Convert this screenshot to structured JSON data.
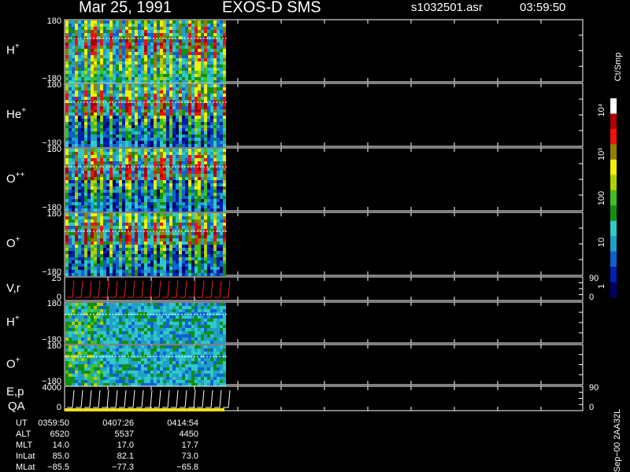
{
  "header": {
    "date": "Mar 25, 1991",
    "instrument": "EXOS-D SMS",
    "file": "s1032501.asr",
    "time": "03:59:50"
  },
  "panels": [
    {
      "label": "H",
      "sup": "+",
      "top": "180",
      "bottom": "−180"
    },
    {
      "label": "He",
      "sup": "+",
      "top": "180",
      "bottom": "−180"
    },
    {
      "label": "O",
      "sup": "++",
      "top": "180",
      "bottom": "−180"
    },
    {
      "label": "O",
      "sup": "+",
      "top": "180",
      "bottom": "−180"
    },
    {
      "label": "V,r",
      "top": "25",
      "bottom": "0",
      "right_top": "90",
      "right_bottom": "0"
    },
    {
      "label": "H",
      "sup": "+",
      "top": "180",
      "bottom": "−180"
    },
    {
      "label": "O",
      "sup": "+",
      "top": "180",
      "bottom": "−180"
    },
    {
      "label": "E,p",
      "top": "4000",
      "bottom": "0",
      "right_top": "90",
      "right_bottom": "0"
    }
  ],
  "qa_label": "QA",
  "colorbar": {
    "unit": "Ct/Smp",
    "ticks": [
      "10⁴",
      "10³",
      "100",
      "10",
      "1"
    ]
  },
  "footer": [
    [
      "UT",
      "0359:50",
      "0407:26",
      "0414:54"
    ],
    [
      "ALT",
      "6520",
      "5537",
      "4450"
    ],
    [
      "MLT",
      "14.0",
      "17.0",
      "17.7"
    ],
    [
      "InLat",
      "85.0",
      "82.1",
      "73.0"
    ],
    [
      "MLat",
      "−85.5",
      "−77.3",
      "−65.8"
    ]
  ],
  "side_label": "Sep−00 2AA32L"
}
